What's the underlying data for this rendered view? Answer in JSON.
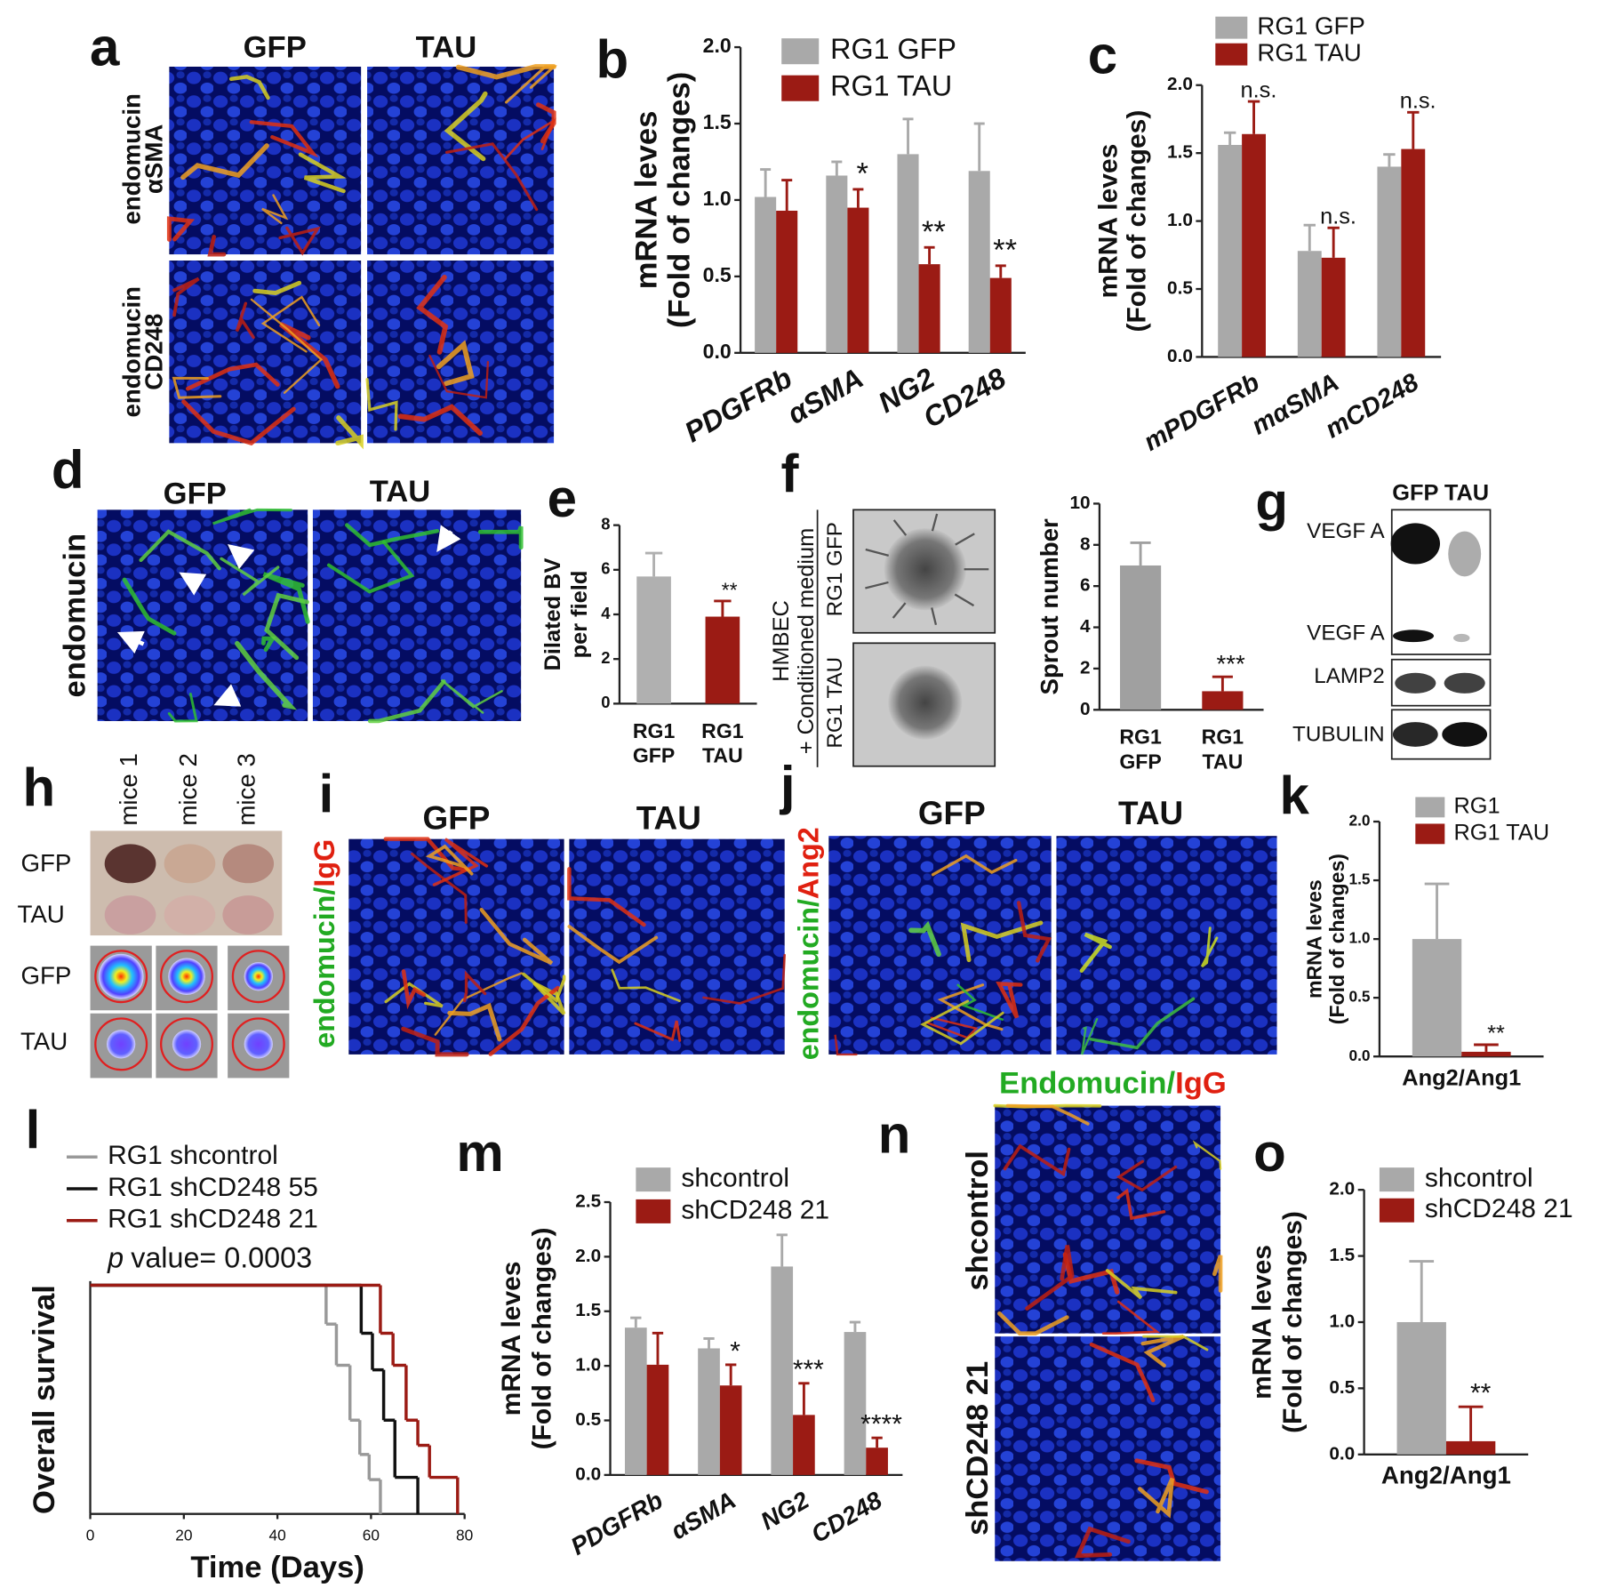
{
  "figure": {
    "letters": [
      "a",
      "b",
      "c",
      "d",
      "e",
      "f",
      "g",
      "h",
      "i",
      "j",
      "k",
      "l",
      "m",
      "n",
      "o"
    ],
    "a": {
      "columns": [
        "GFP",
        "TAU"
      ],
      "rows": [
        [
          "endomucin",
          "αSMA"
        ],
        [
          "endomucin",
          "CD248"
        ]
      ]
    },
    "d": {
      "columns": [
        "GFP",
        "TAU"
      ],
      "stain": "endomucin"
    },
    "f": {
      "treatment": [
        "HMBEC",
        "+ Conditioned medium"
      ],
      "rows": [
        "RG1 GFP",
        "RG1 TAU"
      ]
    },
    "g": {
      "columns": [
        "GFP",
        "TAU"
      ],
      "bands": [
        "VEGF A",
        "VEGF A",
        "LAMP2",
        "TUBULIN"
      ]
    },
    "h": {
      "columns": [
        "mice 1",
        "mice 2",
        "mice 3"
      ],
      "rows": [
        "GFP",
        "TAU",
        "GFP",
        "TAU"
      ]
    },
    "i": {
      "columns": [
        "GFP",
        "TAU"
      ],
      "stain": [
        "endomucin",
        "/",
        "IgG"
      ]
    },
    "j": {
      "columns": [
        "GFP",
        "TAU"
      ],
      "stain": [
        "endomucin",
        "/",
        "Ang2"
      ]
    },
    "n": {
      "title": [
        "Endomucin",
        "/",
        "IgG"
      ],
      "rows": [
        "shcontrol",
        "shCD248 21"
      ]
    }
  },
  "chart_data": [
    {
      "type": "bar",
      "ylabel": [
        "mRNA leves",
        "(Fold of changes)"
      ],
      "categories": [
        "PDGFRb",
        "αSMA",
        "NG2",
        "CD248"
      ],
      "series": [
        {
          "name": "RG1 GFP",
          "color": "#a9a9a9",
          "values": [
            1.02,
            1.16,
            1.3,
            1.19
          ],
          "errors": [
            0.18,
            0.09,
            0.23,
            0.31
          ],
          "annotations": [
            null,
            null,
            null,
            null
          ]
        },
        {
          "name": "RG1 TAU",
          "color": "#9b1b14",
          "values": [
            0.93,
            0.95,
            0.58,
            0.49
          ],
          "errors": [
            0.2,
            0.12,
            0.11,
            0.08
          ],
          "annotations": [
            null,
            "*",
            "**",
            "**"
          ]
        }
      ],
      "ylim": [
        0,
        2
      ],
      "yticks": [
        {
          "value": 0,
          "label": "0.0"
        },
        {
          "value": 0.5,
          "label": "0.5"
        },
        {
          "value": 1,
          "label": "1.0"
        },
        {
          "value": 1.5,
          "label": "1.5"
        },
        {
          "value": 2,
          "label": "2.0"
        }
      ]
    },
    {
      "type": "bar",
      "ylabel": [
        "mRNA leves",
        "(Fold of changes)"
      ],
      "categories": [
        "mPDGFRb",
        "mαSMA",
        "mCD248"
      ],
      "series": [
        {
          "name": "RG1 GFP",
          "color": "#a9a9a9",
          "values": [
            1.56,
            0.78,
            1.4
          ],
          "errors": [
            0.09,
            0.19,
            0.09
          ],
          "annotations": [
            null,
            null,
            null
          ]
        },
        {
          "name": "RG1 TAU",
          "color": "#9b1b14",
          "values": [
            1.64,
            0.73,
            1.53
          ],
          "errors": [
            0.24,
            0.22,
            0.27
          ],
          "annotations": [
            "n.s.",
            "n.s.",
            "n.s."
          ]
        }
      ],
      "ylim": [
        0,
        2
      ],
      "yticks": [
        {
          "value": 0,
          "label": "0.0"
        },
        {
          "value": 0.5,
          "label": "0.5"
        },
        {
          "value": 1,
          "label": "1.0"
        },
        {
          "value": 1.5,
          "label": "1.5"
        },
        {
          "value": 2,
          "label": "2.0"
        }
      ]
    },
    {
      "type": "bar",
      "ylabel": [
        "Dilated BV",
        "per field"
      ],
      "categories": [
        [
          "RG1",
          "GFP"
        ],
        [
          "RG1",
          "TAU"
        ]
      ],
      "values": [
        5.7,
        3.9
      ],
      "errors": [
        1.05,
        0.7
      ],
      "colors": [
        "#b0b0b0",
        "#9b1b14"
      ],
      "annotations": [
        null,
        "**"
      ],
      "ylim": [
        0,
        8
      ],
      "yticks": [
        0,
        2,
        4,
        6,
        8
      ]
    },
    {
      "type": "bar",
      "ylabel": [
        "Sprout number"
      ],
      "categories": [
        [
          "RG1",
          "GFP"
        ],
        [
          "RG1",
          "TAU"
        ]
      ],
      "values": [
        7.0,
        0.9
      ],
      "errors": [
        1.1,
        0.7
      ],
      "colors": [
        "#a0a0a0",
        "#9b1b14"
      ],
      "annotations": [
        null,
        "***"
      ],
      "ylim": [
        0,
        10
      ],
      "yticks": [
        0,
        2,
        4,
        6,
        8,
        10
      ]
    },
    {
      "type": "bar",
      "ylabel": [
        "mRNA leves",
        "(Fold of changes)"
      ],
      "categories": [
        "Ang2/Ang1"
      ],
      "series": [
        {
          "name": "RG1",
          "color": "#a9a9a9",
          "values": [
            1.0
          ],
          "errors": [
            0.47
          ],
          "annotations": [
            null
          ]
        },
        {
          "name": "RG1 TAU",
          "color": "#9b1b14",
          "values": [
            0.04
          ],
          "errors": [
            0.06
          ],
          "annotations": [
            "**"
          ]
        }
      ],
      "ylim": [
        0,
        2
      ],
      "yticks": [
        {
          "value": 0,
          "label": "0.0"
        },
        {
          "value": 0.5,
          "label": "0.5"
        },
        {
          "value": 1,
          "label": "1.0"
        },
        {
          "value": 1.5,
          "label": "1.5"
        },
        {
          "value": 2,
          "label": "2.0"
        }
      ]
    },
    {
      "type": "step",
      "ylabel": [
        "Overall survival"
      ],
      "xlabel": "Time (Days)",
      "annotation": [
        "p",
        "value= 0.0003"
      ],
      "series": [
        {
          "name": "RG1 shcontrol",
          "color": "#999999",
          "x": [
            0,
            50.4,
            52.6,
            55.5,
            57.6,
            59.6,
            62
          ],
          "values": [
            1,
            0.83,
            0.65,
            0.41,
            0.26,
            0.15,
            0
          ]
        },
        {
          "name": "RG1 shCD248 55",
          "color": "#111111",
          "x": [
            0,
            57.9,
            60.3,
            62.7,
            65.1,
            70
          ],
          "values": [
            1,
            0.79,
            0.63,
            0.41,
            0.16,
            0
          ]
        },
        {
          "name": "RG1 shCD248 21",
          "color": "#9b1b14",
          "x": [
            0,
            62,
            64.7,
            67.5,
            70,
            72.5,
            78.5
          ],
          "values": [
            1,
            0.79,
            0.65,
            0.41,
            0.3,
            0.16,
            0
          ]
        }
      ],
      "xlim": [
        0,
        80
      ],
      "xticks": [
        0,
        20,
        40,
        60,
        80
      ],
      "ylim": [
        0,
        1
      ]
    },
    {
      "type": "bar",
      "ylabel": [
        "mRNA leves",
        "(Fold of changes)"
      ],
      "categories": [
        "PDGFRb",
        "αSMA",
        "NG2",
        "CD248"
      ],
      "series": [
        {
          "name": "shcontrol",
          "color": "#a9a9a9",
          "values": [
            1.35,
            1.16,
            1.91,
            1.31
          ],
          "errors": [
            0.09,
            0.09,
            0.29,
            0.09
          ],
          "annotations": [
            null,
            null,
            null,
            null
          ]
        },
        {
          "name": "shCD248 21",
          "color": "#9b1b14",
          "values": [
            1.01,
            0.82,
            0.55,
            0.25
          ],
          "errors": [
            0.29,
            0.19,
            0.29,
            0.09
          ],
          "annotations": [
            null,
            "*",
            "***",
            "****"
          ]
        }
      ],
      "ylim": [
        0,
        2.5
      ],
      "yticks": [
        {
          "value": 0,
          "label": "0.0"
        },
        {
          "value": 0.5,
          "label": "0.5"
        },
        {
          "value": 1,
          "label": "1.0"
        },
        {
          "value": 1.5,
          "label": "1.5"
        },
        {
          "value": 2,
          "label": "2.0"
        },
        {
          "value": 2.5,
          "label": "2.5"
        }
      ]
    },
    {
      "type": "bar",
      "ylabel": [
        "mRNA leves",
        "(Fold of changes)"
      ],
      "categories": [
        "Ang2/Ang1"
      ],
      "series": [
        {
          "name": "shcontrol",
          "color": "#a9a9a9",
          "values": [
            1.0
          ],
          "errors": [
            0.46
          ],
          "annotations": [
            null
          ]
        },
        {
          "name": "shCD248 21",
          "color": "#9b1b14",
          "values": [
            0.1
          ],
          "errors": [
            0.26
          ],
          "annotations": [
            "**"
          ]
        }
      ],
      "ylim": [
        0,
        2
      ],
      "yticks": [
        {
          "value": 0,
          "label": "0.0"
        },
        {
          "value": 0.5,
          "label": "0.5"
        },
        {
          "value": 1,
          "label": "1.0"
        },
        {
          "value": 1.5,
          "label": "1.5"
        },
        {
          "value": 2,
          "label": "2.0"
        }
      ]
    }
  ]
}
